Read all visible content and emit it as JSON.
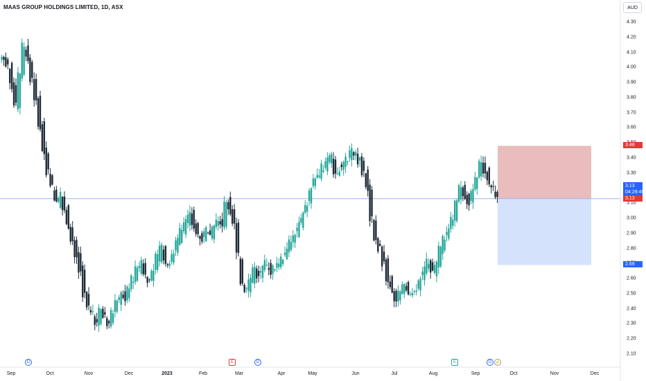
{
  "header": {
    "title": "MAAS GROUP HOLDINGS LIMITED, 1D, ASX",
    "currency": "AUD"
  },
  "colors": {
    "up": "#26a69a",
    "down": "#1e2a38",
    "stop": "#e7b6b6",
    "target": "#cfe0fb",
    "price_line": "#2962ff"
  },
  "chart_data": {
    "type": "candlestick",
    "y_ticks": [
      "4.30",
      "4.20",
      "4.10",
      "4.00",
      "3.90",
      "3.80",
      "3.70",
      "3.60",
      "3.50",
      "3.40",
      "3.30",
      "3.20",
      "3.10",
      "3.00",
      "2.90",
      "2.80",
      "2.70",
      "2.60",
      "2.50",
      "2.40",
      "2.30",
      "2.20",
      "2.10"
    ],
    "y_tick_values": [
      4.3,
      4.2,
      4.1,
      4.0,
      3.9,
      3.8,
      3.7,
      3.6,
      3.5,
      3.4,
      3.3,
      3.2,
      3.1,
      3.0,
      2.9,
      2.8,
      2.7,
      2.6,
      2.5,
      2.4,
      2.3,
      2.2,
      2.1
    ],
    "ylim": [
      2.03,
      4.33
    ],
    "x_ticks": [
      "Sep",
      "Oct",
      "Nov",
      "Dec",
      "2023",
      "Feb",
      "Mar",
      "Apr",
      "May",
      "Jun",
      "Jul",
      "Aug",
      "Sep",
      "Oct",
      "Nov",
      "Dec"
    ],
    "close_series": [
      4.05,
      4.02,
      3.88,
      3.75,
      3.95,
      4.15,
      4.05,
      3.92,
      3.8,
      3.6,
      3.45,
      3.3,
      3.2,
      3.1,
      3.15,
      3.05,
      2.95,
      2.85,
      2.75,
      2.65,
      2.5,
      2.42,
      2.36,
      2.3,
      2.4,
      2.34,
      2.28,
      2.38,
      2.45,
      2.5,
      2.46,
      2.55,
      2.6,
      2.66,
      2.7,
      2.63,
      2.57,
      2.67,
      2.74,
      2.8,
      2.72,
      2.68,
      2.78,
      2.85,
      2.92,
      2.97,
      3.02,
      2.95,
      2.9,
      2.85,
      2.92,
      2.88,
      2.95,
      3.0,
      2.96,
      3.1,
      3.05,
      2.98,
      2.75,
      2.55,
      2.52,
      2.6,
      2.66,
      2.62,
      2.66,
      2.7,
      2.64,
      2.67,
      2.7,
      2.73,
      2.78,
      2.84,
      2.9,
      2.96,
      3.02,
      3.1,
      3.2,
      3.26,
      3.3,
      3.34,
      3.38,
      3.42,
      3.28,
      3.32,
      3.36,
      3.4,
      3.45,
      3.42,
      3.38,
      3.3,
      3.2,
      3.0,
      2.86,
      2.8,
      2.7,
      2.6,
      2.52,
      2.46,
      2.5,
      2.56,
      2.5,
      2.48,
      2.54,
      2.6,
      2.66,
      2.72,
      2.64,
      2.7,
      2.8,
      2.86,
      2.92,
      3.0,
      3.1,
      3.22,
      3.15,
      3.1,
      3.2,
      3.28,
      3.36,
      3.3,
      3.24,
      3.2,
      3.13
    ],
    "last_price": "3.13",
    "countdown": "04:29:49",
    "position": {
      "entry": 3.13,
      "stop": 3.48,
      "target": 2.69,
      "stop_label": "3.48",
      "target_label": "2.69",
      "entry_label": "3.13"
    },
    "events": [
      {
        "label": "D",
        "kind": "dividend"
      },
      {
        "label": "E",
        "kind": "earnings-red"
      },
      {
        "label": "D",
        "kind": "dividend"
      },
      {
        "label": "E",
        "kind": "earnings"
      },
      {
        "label": "D",
        "kind": "dividend"
      },
      {
        "label": "⚡",
        "kind": "flash"
      }
    ]
  }
}
